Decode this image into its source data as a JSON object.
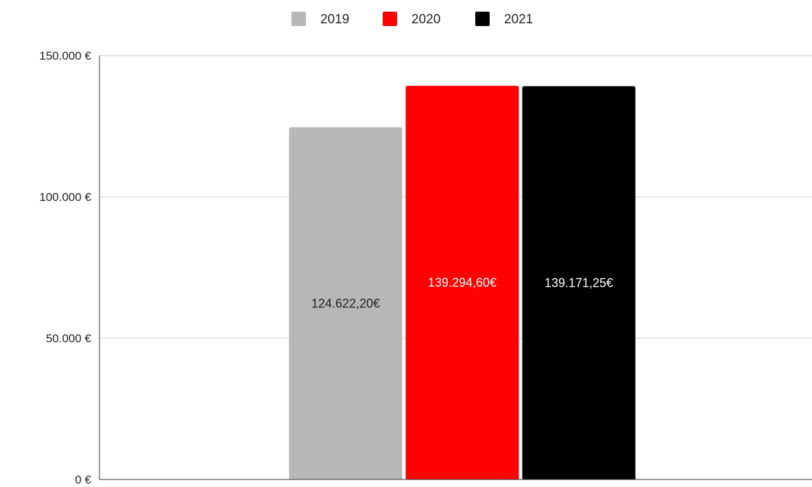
{
  "chart_data": {
    "type": "bar",
    "title": "",
    "xlabel": "",
    "ylabel": "",
    "categories": [
      ""
    ],
    "series": [
      {
        "name": "2019",
        "values": [
          124622.2
        ],
        "color": "#b7b7b7",
        "data_label": "124.622,20€",
        "label_color": "#222222"
      },
      {
        "name": "2020",
        "values": [
          139294.6
        ],
        "color": "#ff0000",
        "data_label": "139.294,60€",
        "label_color": "#ffffff"
      },
      {
        "name": "2021",
        "values": [
          139171.25
        ],
        "color": "#000000",
        "data_label": "139.171,25€",
        "label_color": "#ffffff"
      }
    ],
    "ylim": [
      0,
      150000
    ],
    "yticks": [
      {
        "value": 0,
        "label": "0 €"
      },
      {
        "value": 50000,
        "label": "50.000 €"
      },
      {
        "value": 100000,
        "label": "100.000 €"
      },
      {
        "value": 150000,
        "label": "150.000 €"
      }
    ],
    "grid": true,
    "legend_position": "top-center"
  }
}
